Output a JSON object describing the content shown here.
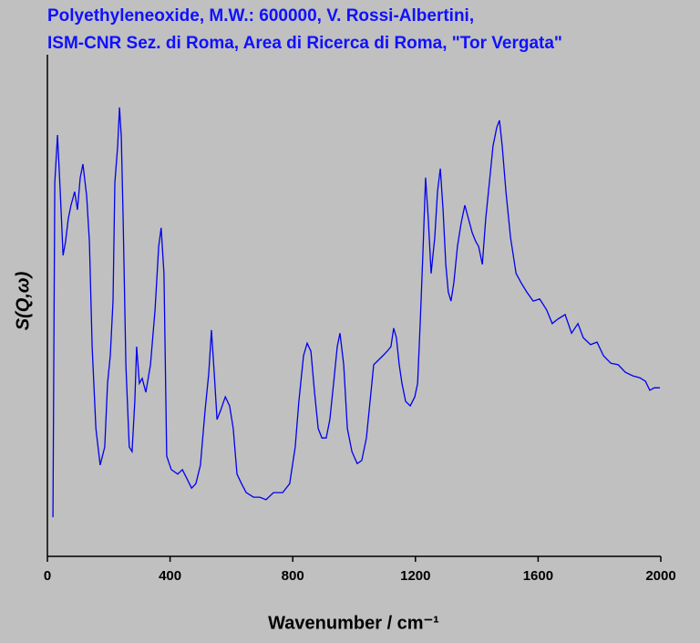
{
  "chart_data": {
    "type": "line",
    "title": "Polyethyleneoxide, M.W.: 600000, V. Rossi-Albertini,",
    "subtitle": "ISM-CNR Sez. di Roma, Area di Ricerca di Roma, \"Tor Vergata\"",
    "x_label": "Wavenumber / cm⁻¹",
    "y_label": "S(Q,ω)",
    "xlim": [
      0,
      2000
    ],
    "xticks": [
      0,
      400,
      800,
      1200,
      1600,
      2000
    ],
    "ylim": [
      0,
      100
    ],
    "grid": false,
    "series": [
      {
        "color": "#0000ee",
        "x": [
          18,
          24,
          33,
          42,
          51,
          59,
          68,
          77,
          89,
          98,
          107,
          116,
          128,
          137,
          146,
          158,
          172,
          187,
          196,
          205,
          214,
          220,
          229,
          235,
          241,
          247,
          256,
          267,
          276,
          285,
          291,
          300,
          309,
          321,
          336,
          351,
          363,
          371,
          380,
          389,
          404,
          425,
          440,
          455,
          470,
          484,
          499,
          514,
          526,
          535,
          544,
          553,
          565,
          580,
          594,
          606,
          618,
          633,
          648,
          672,
          692,
          713,
          737,
          767,
          790,
          808,
          820,
          835,
          847,
          859,
          871,
          883,
          895,
          909,
          921,
          933,
          945,
          954,
          966,
          978,
          993,
          1010,
          1025,
          1040,
          1052,
          1064,
          1079,
          1094,
          1108,
          1120,
          1129,
          1138,
          1147,
          1156,
          1168,
          1183,
          1198,
          1207,
          1216,
          1224,
          1233,
          1242,
          1251,
          1263,
          1272,
          1281,
          1290,
          1299,
          1307,
          1316,
          1325,
          1337,
          1349,
          1361,
          1373,
          1385,
          1397,
          1406,
          1418,
          1429,
          1441,
          1453,
          1465,
          1474,
          1483,
          1495,
          1510,
          1528,
          1545,
          1563,
          1584,
          1605,
          1628,
          1646,
          1664,
          1688,
          1709,
          1730,
          1747,
          1771,
          1792,
          1813,
          1837,
          1861,
          1884,
          1908,
          1932,
          1950,
          1964,
          1979,
          1997
        ],
        "values": [
          7.8,
          74.5,
          84.0,
          72.7,
          60.0,
          62.7,
          67.3,
          70.0,
          72.7,
          69.1,
          75.5,
          78.2,
          71.8,
          62.7,
          41.8,
          25.5,
          18.2,
          21.8,
          34.5,
          40.0,
          50.9,
          74.5,
          81.8,
          89.5,
          83.6,
          67.3,
          38.2,
          21.8,
          20.9,
          30.9,
          41.8,
          34.5,
          35.5,
          32.7,
          38.2,
          49.1,
          61.8,
          65.5,
          56.4,
          20.0,
          17.3,
          16.4,
          17.3,
          15.5,
          13.6,
          14.5,
          18.2,
          29.1,
          36.4,
          45.1,
          36.4,
          27.3,
          29.1,
          31.8,
          30.0,
          25.5,
          16.4,
          14.5,
          12.7,
          11.8,
          11.8,
          11.3,
          12.7,
          12.7,
          14.5,
          21.8,
          30.9,
          40.0,
          42.5,
          40.9,
          32.7,
          25.5,
          23.6,
          23.6,
          27.3,
          34.5,
          41.8,
          44.5,
          38.2,
          25.5,
          20.9,
          18.5,
          19.1,
          23.6,
          30.9,
          38.2,
          39.1,
          40.0,
          40.9,
          41.8,
          45.5,
          43.6,
          38.2,
          34.5,
          30.9,
          30.0,
          31.8,
          34.5,
          47.3,
          60.0,
          75.5,
          67.3,
          56.4,
          63.6,
          72.7,
          77.3,
          69.1,
          58.2,
          52.7,
          50.9,
          54.5,
          61.8,
          66.4,
          70.0,
          67.3,
          64.5,
          62.7,
          61.8,
          58.2,
          67.3,
          74.5,
          81.8,
          85.5,
          86.9,
          81.8,
          72.7,
          63.6,
          56.4,
          54.5,
          52.7,
          50.9,
          51.3,
          49.1,
          46.4,
          47.3,
          48.2,
          44.5,
          46.4,
          43.6,
          42.2,
          42.7,
          40.0,
          38.5,
          38.2,
          36.7,
          36.0,
          35.6,
          34.9,
          33.1,
          33.6,
          33.6
        ]
      }
    ]
  }
}
